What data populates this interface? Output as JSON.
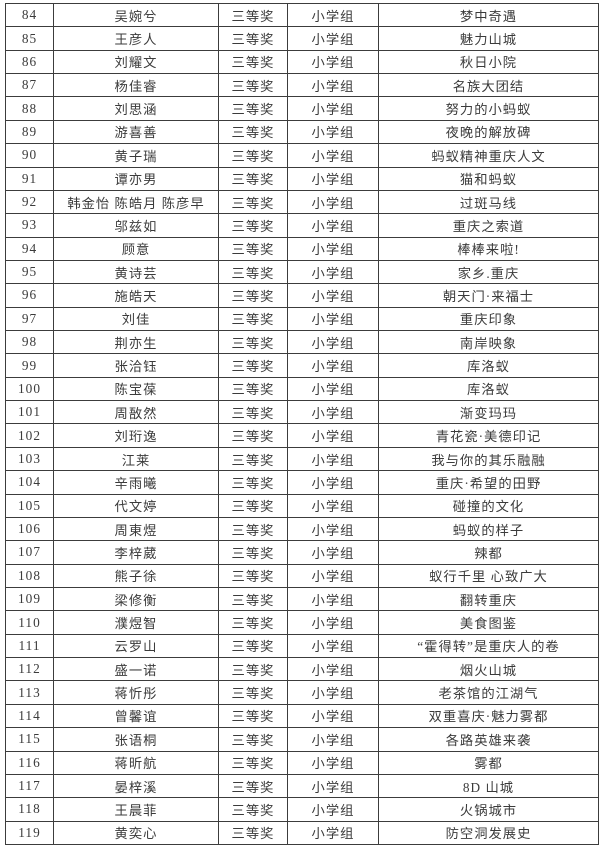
{
  "theme": {
    "background": "#ffffff",
    "border_color": "#3c3c3c",
    "text_color": "#3b3b3b"
  },
  "table": {
    "row_fields": [
      "no",
      "authors",
      "award",
      "group",
      "title"
    ],
    "rows": [
      {
        "no": "84",
        "authors": "吴婉兮",
        "award": "三等奖",
        "group": "小学组",
        "title": "梦中奇遇"
      },
      {
        "no": "85",
        "authors": "王彦人",
        "award": "三等奖",
        "group": "小学组",
        "title": "魅力山城"
      },
      {
        "no": "86",
        "authors": "刘耀文",
        "award": "三等奖",
        "group": "小学组",
        "title": "秋日小院"
      },
      {
        "no": "87",
        "authors": "杨佳睿",
        "award": "三等奖",
        "group": "小学组",
        "title": "名族大团结"
      },
      {
        "no": "88",
        "authors": "刘思涵",
        "award": "三等奖",
        "group": "小学组",
        "title": "努力的小蚂蚁"
      },
      {
        "no": "89",
        "authors": "游喜善",
        "award": "三等奖",
        "group": "小学组",
        "title": "夜晚的解放碑"
      },
      {
        "no": "90",
        "authors": "黄子瑞",
        "award": "三等奖",
        "group": "小学组",
        "title": "蚂蚁精神重庆人文"
      },
      {
        "no": "91",
        "authors": "谭亦男",
        "award": "三等奖",
        "group": "小学组",
        "title": "猫和蚂蚁"
      },
      {
        "no": "92",
        "authors": "韩金怡 陈皓月 陈彦早",
        "award": "三等奖",
        "group": "小学组",
        "title": "过斑马线"
      },
      {
        "no": "93",
        "authors": "邬兹如",
        "award": "三等奖",
        "group": "小学组",
        "title": "重庆之索道"
      },
      {
        "no": "94",
        "authors": "顾意",
        "award": "三等奖",
        "group": "小学组",
        "title": "棒棒来啦!"
      },
      {
        "no": "95",
        "authors": "黄诗芸",
        "award": "三等奖",
        "group": "小学组",
        "title": "家乡.重庆"
      },
      {
        "no": "96",
        "authors": "施皓天",
        "award": "三等奖",
        "group": "小学组",
        "title": "朝天门·来福士"
      },
      {
        "no": "97",
        "authors": "刘佳",
        "award": "三等奖",
        "group": "小学组",
        "title": "重庆印象"
      },
      {
        "no": "98",
        "authors": "荆亦生",
        "award": "三等奖",
        "group": "小学组",
        "title": "南岸映象"
      },
      {
        "no": "99",
        "authors": "张洽钰",
        "award": "三等奖",
        "group": "小学组",
        "title": "库洛蚁"
      },
      {
        "no": "100",
        "authors": "陈宝葆",
        "award": "三等奖",
        "group": "小学组",
        "title": "库洛蚁"
      },
      {
        "no": "101",
        "authors": "周敔然",
        "award": "三等奖",
        "group": "小学组",
        "title": "渐变玛玛"
      },
      {
        "no": "102",
        "authors": "刘珩逸",
        "award": "三等奖",
        "group": "小学组",
        "title": "青花瓷·美德印记"
      },
      {
        "no": "103",
        "authors": "江莱",
        "award": "三等奖",
        "group": "小学组",
        "title": "我与你的其乐融融"
      },
      {
        "no": "104",
        "authors": "辛雨曦",
        "award": "三等奖",
        "group": "小学组",
        "title": "重庆·希望的田野"
      },
      {
        "no": "105",
        "authors": "代文婷",
        "award": "三等奖",
        "group": "小学组",
        "title": "碰撞的文化"
      },
      {
        "no": "106",
        "authors": "周東煜",
        "award": "三等奖",
        "group": "小学组",
        "title": "蚂蚁的样子"
      },
      {
        "no": "107",
        "authors": "李梓葳",
        "award": "三等奖",
        "group": "小学组",
        "title": "辣都"
      },
      {
        "no": "108",
        "authors": "熊子徐",
        "award": "三等奖",
        "group": "小学组",
        "title": "蚁行千里 心致广大"
      },
      {
        "no": "109",
        "authors": "梁修衡",
        "award": "三等奖",
        "group": "小学组",
        "title": "翻转重庆"
      },
      {
        "no": "110",
        "authors": "濮煜智",
        "award": "三等奖",
        "group": "小学组",
        "title": "美食图鉴"
      },
      {
        "no": "111",
        "authors": "云罗山",
        "award": "三等奖",
        "group": "小学组",
        "title": "“霍得转”是重庆人的卷"
      },
      {
        "no": "112",
        "authors": "盛一诺",
        "award": "三等奖",
        "group": "小学组",
        "title": "烟火山城"
      },
      {
        "no": "113",
        "authors": "蒋忻彤",
        "award": "三等奖",
        "group": "小学组",
        "title": "老茶馆的江湖气"
      },
      {
        "no": "114",
        "authors": "曾馨谊",
        "award": "三等奖",
        "group": "小学组",
        "title": "双重喜庆·魅力雾都"
      },
      {
        "no": "115",
        "authors": "张语桐",
        "award": "三等奖",
        "group": "小学组",
        "title": "各路英雄来袭"
      },
      {
        "no": "116",
        "authors": "蒋昕航",
        "award": "三等奖",
        "group": "小学组",
        "title": "雾都"
      },
      {
        "no": "117",
        "authors": "晏梓溪",
        "award": "三等奖",
        "group": "小学组",
        "title": "8D 山城"
      },
      {
        "no": "118",
        "authors": "王晨菲",
        "award": "三等奖",
        "group": "小学组",
        "title": "火锅城市"
      },
      {
        "no": "119",
        "authors": "黄奕心",
        "award": "三等奖",
        "group": "小学组",
        "title": "防空洞发展史"
      }
    ]
  }
}
